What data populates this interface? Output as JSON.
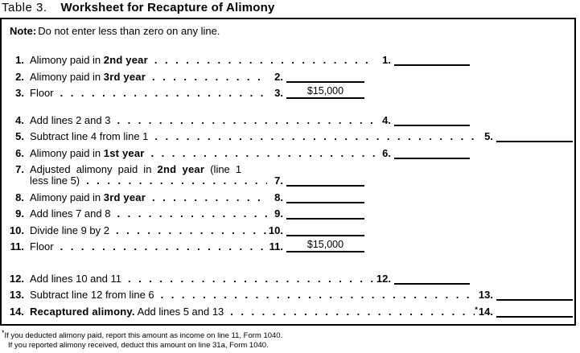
{
  "colors": {
    "ink": "#000000",
    "paper": "#ffffff"
  },
  "title": {
    "prefix": "Table 3.",
    "main": "Worksheet for Recapture of Alimony"
  },
  "note": {
    "label": "Note:",
    "text": "Do not enter less than zero on any line."
  },
  "rows": [
    {
      "num": "1.",
      "segments": [
        {
          "text": "Alimony paid in ",
          "bold": false
        },
        {
          "text": "2nd year",
          "bold": true
        }
      ],
      "entry": {
        "num": "1.",
        "col": "B"
      }
    },
    {
      "num": "2.",
      "segments": [
        {
          "text": "Alimony paid in ",
          "bold": false
        },
        {
          "text": "3rd year",
          "bold": true
        }
      ],
      "entry": {
        "num": "2.",
        "col": "A"
      }
    },
    {
      "num": "3.",
      "segments": [
        {
          "text": "Floor",
          "bold": false
        }
      ],
      "entry": {
        "num": "3.",
        "col": "A",
        "value": "$15,000"
      }
    },
    {
      "num": "4.",
      "gap": "gap-md",
      "segments": [
        {
          "text": "Add lines 2 and 3",
          "bold": false
        }
      ],
      "entry": {
        "num": "4.",
        "col": "B"
      }
    },
    {
      "num": "5.",
      "segments": [
        {
          "text": "Subtract line 4 from line 1",
          "bold": false
        }
      ],
      "entry": {
        "num": "5.",
        "col": "C"
      }
    },
    {
      "num": "6.",
      "segments": [
        {
          "text": "Alimony paid in ",
          "bold": false
        },
        {
          "text": "1st year",
          "bold": true
        }
      ],
      "entry": {
        "num": "6.",
        "col": "B"
      }
    },
    {
      "num": "7.",
      "segments": [
        {
          "text": "Adjusted alimony paid in ",
          "bold": false
        },
        {
          "text": "2nd year",
          "bold": true
        },
        {
          "text": " (line 1",
          "bold": false
        }
      ],
      "label2": "less line 5)",
      "entry": {
        "num": "7.",
        "col": "A"
      }
    },
    {
      "num": "8.",
      "segments": [
        {
          "text": "Alimony paid in ",
          "bold": false
        },
        {
          "text": "3rd year",
          "bold": true
        }
      ],
      "entry": {
        "num": "8.",
        "col": "A"
      }
    },
    {
      "num": "9.",
      "segments": [
        {
          "text": "Add lines 7 and 8",
          "bold": false
        }
      ],
      "entry": {
        "num": "9.",
        "col": "A"
      }
    },
    {
      "num": "10.",
      "segments": [
        {
          "text": "Divide line 9 by 2",
          "bold": false
        }
      ],
      "entry": {
        "num": "10.",
        "col": "A"
      }
    },
    {
      "num": "11.",
      "segments": [
        {
          "text": "Floor",
          "bold": false
        }
      ],
      "entry": {
        "num": "11.",
        "col": "A",
        "value": "$15,000"
      }
    },
    {
      "num": "12.",
      "gap": "gap-lg",
      "segments": [
        {
          "text": "Add lines 10 and 11",
          "bold": false
        }
      ],
      "entry": {
        "num": "12.",
        "col": "B"
      }
    },
    {
      "num": "13.",
      "segments": [
        {
          "text": "Subtract line 12 from line 6",
          "bold": false
        }
      ],
      "entry": {
        "num": "13.",
        "col": "C"
      }
    },
    {
      "num": "14.",
      "segments": [
        {
          "text": "Recaptured alimony.",
          "bold": true
        },
        {
          "text": " Add lines 5 and 13",
          "bold": false
        }
      ],
      "entry": {
        "num": "14.",
        "col": "C",
        "star": "*"
      }
    }
  ],
  "footnote": {
    "marker": "*",
    "lines": [
      "If you deducted alimony paid, report this amount as income on line 11, Form 1040.",
      "If you reported alimony received, deduct this amount on line 31a, Form 1040."
    ]
  }
}
